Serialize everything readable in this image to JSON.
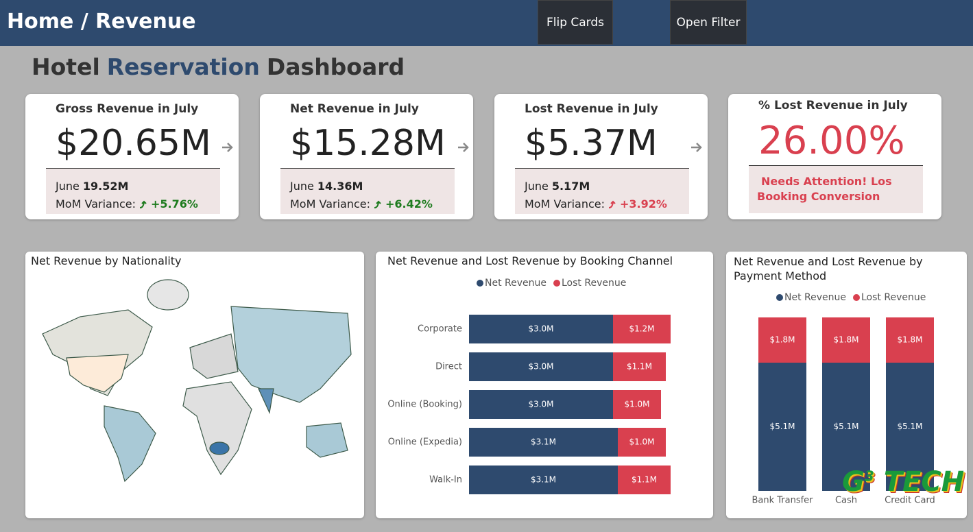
{
  "header": {
    "title": "Home / Revenue",
    "buttons": [
      "Flip Cards",
      "Open Filter"
    ]
  },
  "dashboard_title": {
    "parts": [
      "Hotel",
      "Reservation",
      "Dashboard"
    ]
  },
  "cards": [
    {
      "title": "Gross Revenue in July",
      "value": "$20.65M",
      "prev_label": "June",
      "prev_value": "19.52M",
      "variance_label": "MoM Variance:",
      "variance": "+5.76%",
      "variance_color": "#1e7b1e"
    },
    {
      "title": "Net Revenue in July",
      "value": "$15.28M",
      "prev_label": "June",
      "prev_value": "14.36M",
      "variance_label": "MoM Variance:",
      "variance": "+6.42%",
      "variance_color": "#1e7b1e"
    },
    {
      "title": "Lost Revenue in July",
      "value": "$5.37M",
      "prev_label": "June",
      "prev_value": "5.17M",
      "variance_label": "MoM Variance:",
      "variance": "+3.92%",
      "variance_color": "#d9404f"
    }
  ],
  "alert_card": {
    "title": "% Lost Revenue in July",
    "value": "26.00%",
    "note": "Needs Attention! Los Booking Conversion"
  },
  "map_panel": {
    "title": "Net Revenue by Nationality"
  },
  "logo": {
    "parts": [
      "G",
      "3",
      "TECH"
    ]
  },
  "chart_data": [
    {
      "type": "hbar_stacked",
      "title": "Net Revenue and Lost Revenue by Booking Channel",
      "categories": [
        "Corporate",
        "Direct",
        "Online (Booking)",
        "Online (Expedia)",
        "Walk-In"
      ],
      "series": [
        {
          "name": "Net Revenue",
          "color": "#2e4a6e",
          "values": [
            3.0,
            3.0,
            3.0,
            3.1,
            3.1
          ],
          "value_labels": [
            "$3.0M",
            "$3.0M",
            "$3.0M",
            "$3.1M",
            "$3.1M"
          ]
        },
        {
          "name": "Lost Revenue",
          "color": "#d9404f",
          "values": [
            1.2,
            1.1,
            1.0,
            1.0,
            1.1
          ],
          "value_labels": [
            "$1.2M",
            "$1.1M",
            "$1.0M",
            "$1.0M",
            "$1.1M"
          ]
        }
      ]
    },
    {
      "type": "vbar_stacked",
      "title": "Net Revenue and Lost Revenue by Payment Method",
      "categories": [
        "Bank Transfer",
        "Cash",
        "Credit Card"
      ],
      "series": [
        {
          "name": "Net Revenue",
          "color": "#2e4a6e",
          "values": [
            5.1,
            5.1,
            5.1
          ],
          "value_labels": [
            "$5.1M",
            "$5.1M",
            "$5.1M"
          ]
        },
        {
          "name": "Lost Revenue",
          "color": "#d9404f",
          "values": [
            1.8,
            1.8,
            1.8
          ],
          "value_labels": [
            "$1.8M",
            "$1.8M",
            "$1.8M"
          ]
        }
      ]
    }
  ]
}
